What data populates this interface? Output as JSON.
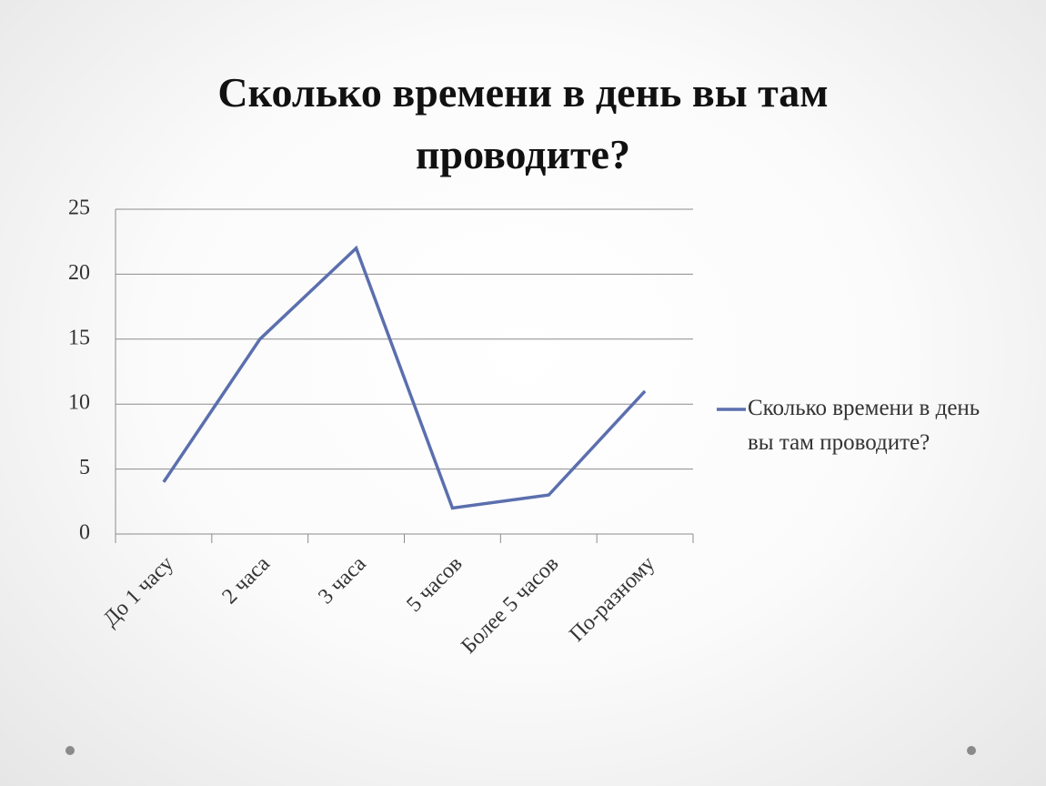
{
  "chart_data": {
    "type": "line",
    "title": "Сколько времени в день вы там проводите?",
    "categories": [
      "До 1 часу",
      "2 часа",
      "3 часа",
      "5 часов",
      "Более 5 часов",
      "По-разному"
    ],
    "series": [
      {
        "name": "Сколько времени в день вы там проводите?",
        "color": "#5b6fae",
        "values": [
          4,
          15,
          22,
          2,
          3,
          11
        ]
      }
    ],
    "ylim": [
      0,
      25
    ],
    "yticks": [
      0,
      5,
      10,
      15,
      20,
      25
    ],
    "grid": true,
    "legend": "right"
  }
}
